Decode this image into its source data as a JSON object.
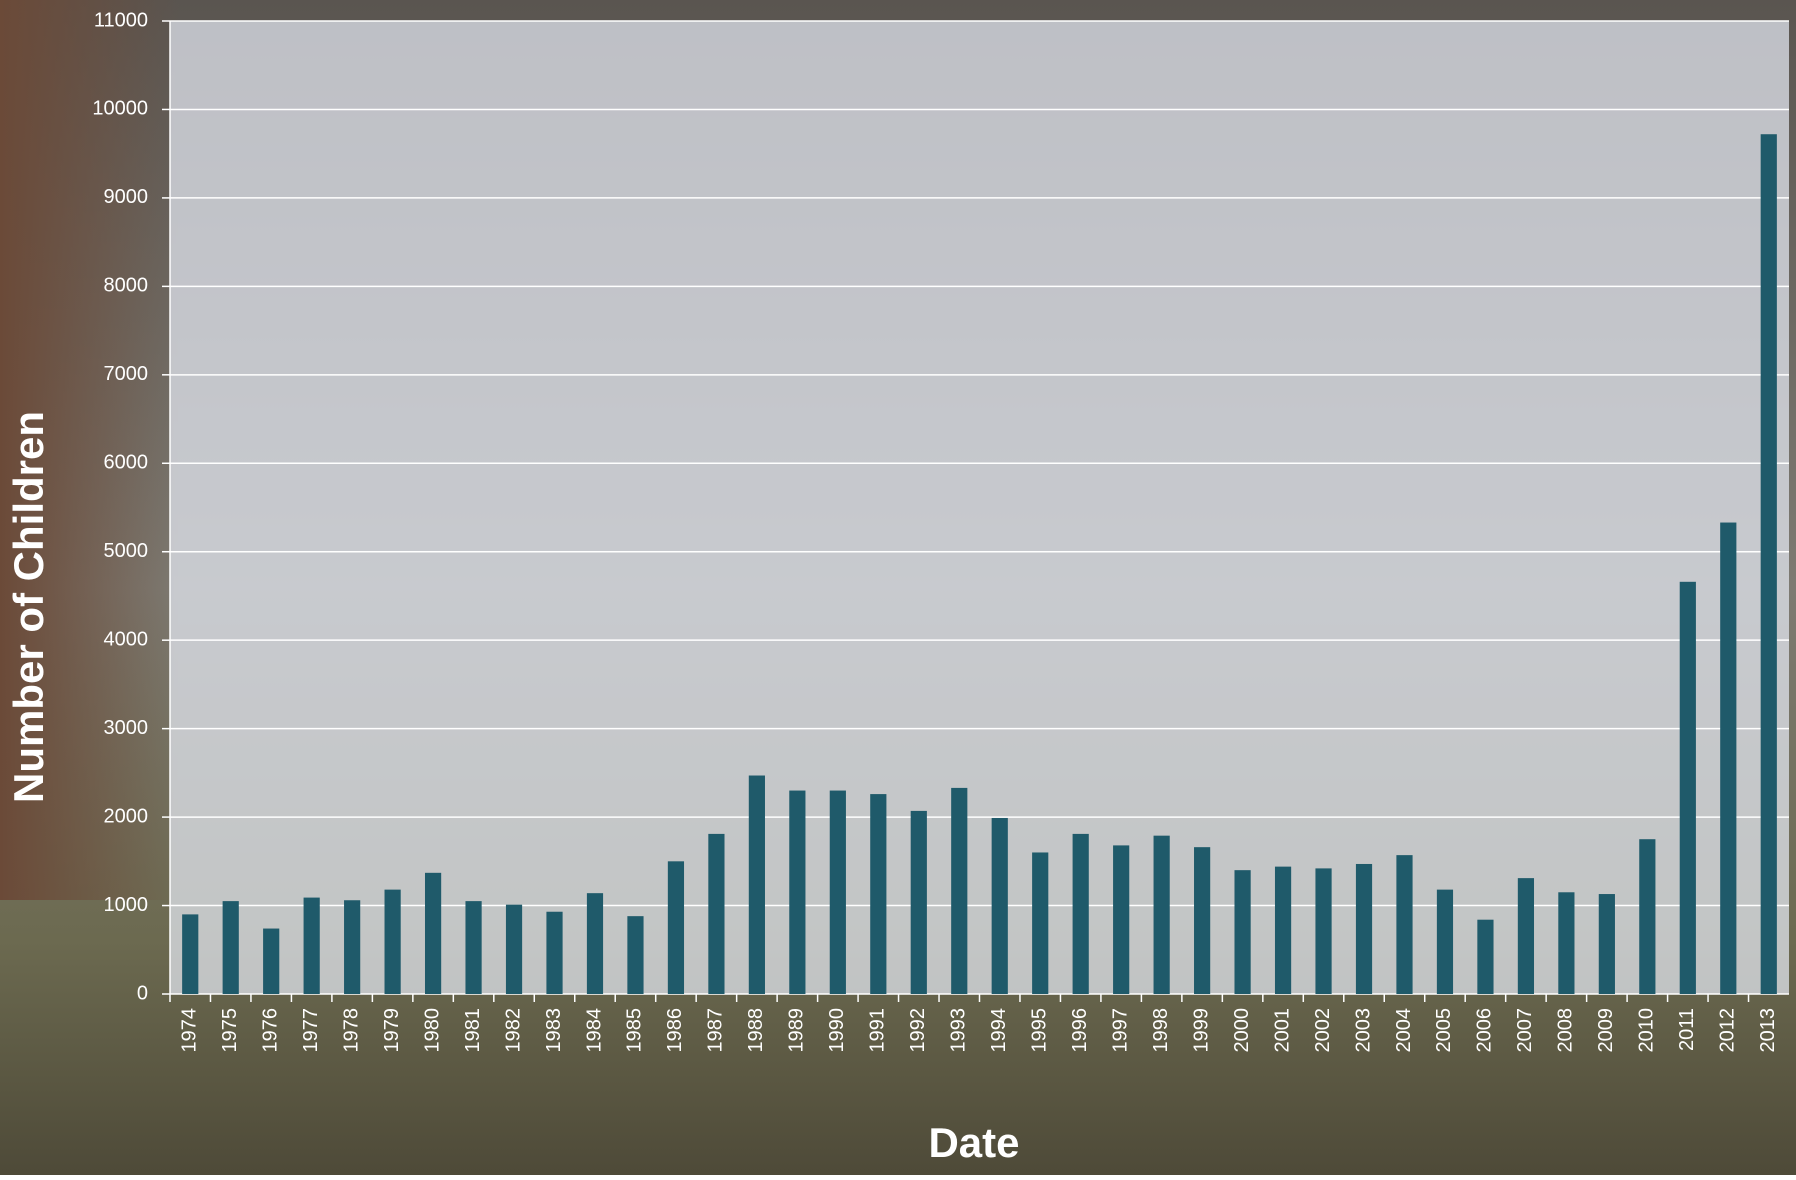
{
  "chart_data": {
    "type": "bar",
    "x_label": "Date",
    "y_label": "Number of Children",
    "categories": [
      "1974",
      "1975",
      "1976",
      "1977",
      "1978",
      "1979",
      "1980",
      "1981",
      "1982",
      "1983",
      "1984",
      "1985",
      "1986",
      "1987",
      "1988",
      "1989",
      "1990",
      "1991",
      "1992",
      "1993",
      "1994",
      "1995",
      "1996",
      "1997",
      "1998",
      "1999",
      "2000",
      "2001",
      "2002",
      "2003",
      "2004",
      "2005",
      "2006",
      "2007",
      "2008",
      "2009",
      "2010",
      "2011",
      "2012",
      "2013"
    ],
    "values": [
      900,
      1050,
      740,
      1090,
      1060,
      1180,
      1370,
      1050,
      1010,
      930,
      1140,
      880,
      1500,
      1810,
      2470,
      2300,
      2300,
      2260,
      2070,
      2330,
      1990,
      1600,
      1810,
      1680,
      1790,
      1660,
      1400,
      1440,
      1420,
      1470,
      1570,
      1180,
      840,
      1310,
      1150,
      1130,
      1750,
      4660,
      5330,
      9720
    ],
    "color": "#1f5a6a",
    "ylim": [
      0,
      11000
    ],
    "yticks": [
      0,
      1000,
      2000,
      3000,
      4000,
      5000,
      6000,
      7000,
      8000,
      9000,
      10000,
      11000
    ],
    "grid": true
  }
}
